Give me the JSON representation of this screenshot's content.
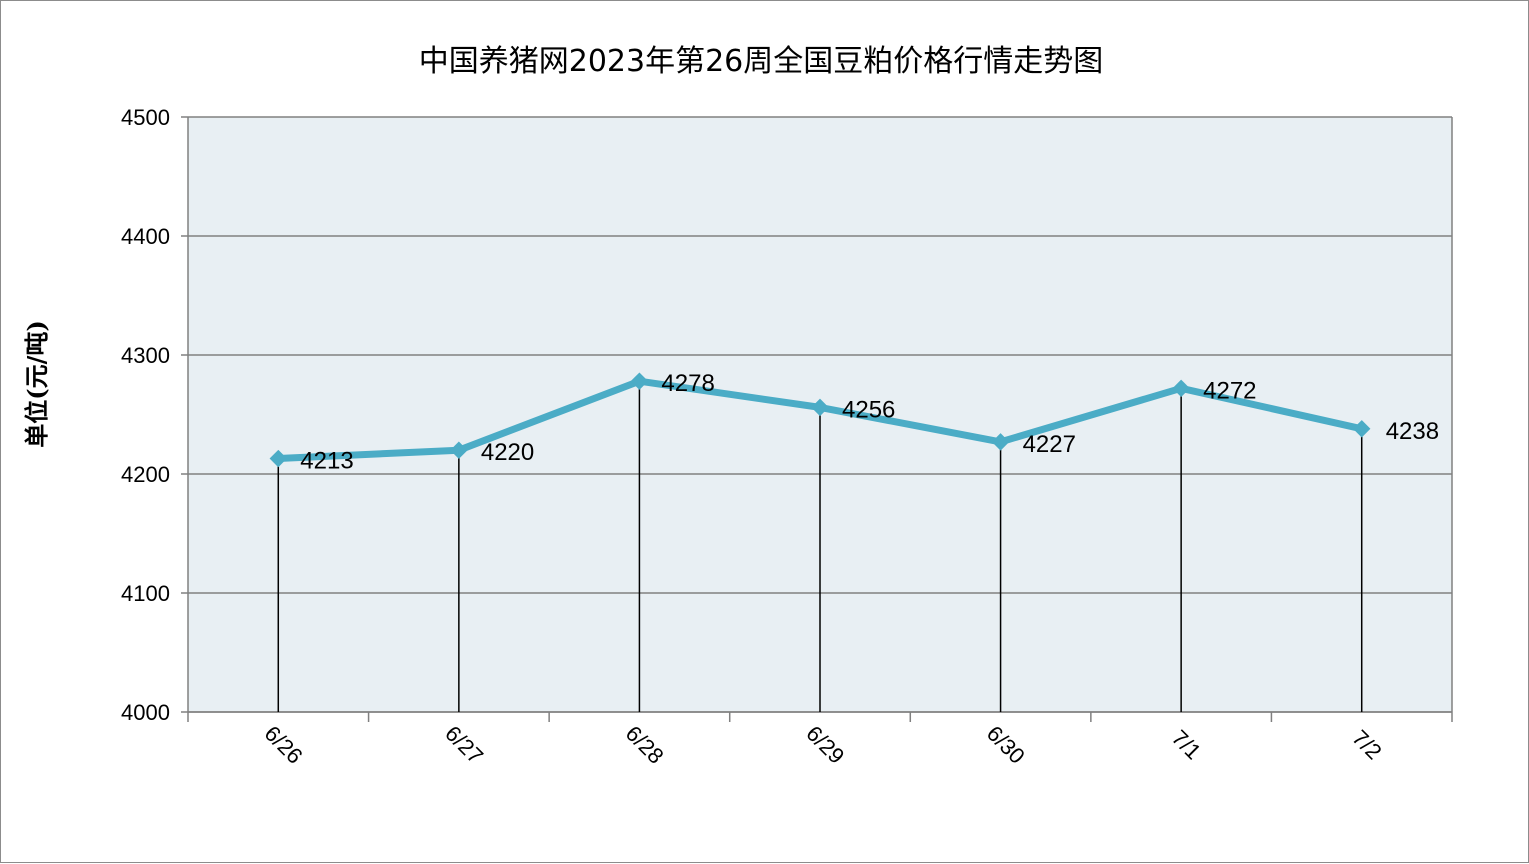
{
  "chart_data": {
    "type": "line",
    "title": "中国养猪网2023年第26周全国豆粕价格行情走势图",
    "xlabel": "",
    "ylabel": "单位(元/吨)",
    "categories": [
      "6/26",
      "6/27",
      "6/28",
      "6/29",
      "6/30",
      "7/1",
      "7/2"
    ],
    "series": [
      {
        "values": [
          4213,
          4220,
          4278,
          4256,
          4227,
          4272,
          4238
        ]
      }
    ],
    "data_labels": [
      "4213",
      "4220",
      "4278",
      "4256",
      "4227",
      "4272",
      "4238"
    ],
    "ylim": [
      4000,
      4500
    ],
    "yticks": [
      "4000",
      "4100",
      "4200",
      "4300",
      "4400",
      "4500"
    ],
    "grid": true,
    "drop_lines": true,
    "legend": "none",
    "colors": {
      "line": "#4BACC6",
      "plot_background": "#E8EFF3",
      "grid": "#808080",
      "drop_line": "#000000"
    }
  }
}
